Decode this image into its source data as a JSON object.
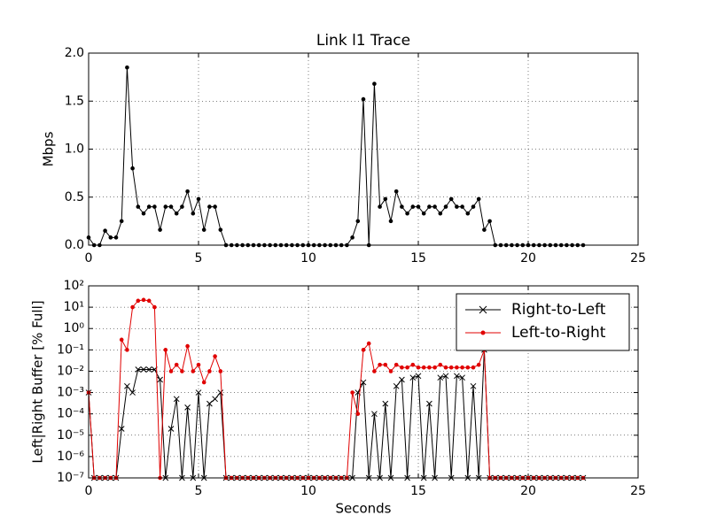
{
  "chart_data": [
    {
      "type": "line",
      "title": "Link l1 Trace",
      "y_label": "Mbps",
      "x": [
        0,
        0.25,
        0.5,
        0.75,
        1,
        1.25,
        1.5,
        1.75,
        2,
        2.25,
        2.5,
        2.75,
        3,
        3.25,
        3.5,
        3.75,
        4,
        4.25,
        4.5,
        4.75,
        5,
        5.25,
        5.5,
        5.75,
        6,
        6.25,
        6.5,
        6.75,
        7,
        7.25,
        7.5,
        7.75,
        8,
        8.25,
        8.5,
        8.75,
        9,
        9.25,
        9.5,
        9.75,
        10,
        10.25,
        10.5,
        10.75,
        11,
        11.25,
        11.5,
        11.75,
        12,
        12.25,
        12.5,
        12.75,
        13,
        13.25,
        13.5,
        13.75,
        14,
        14.25,
        14.5,
        14.75,
        15,
        15.25,
        15.5,
        15.75,
        16,
        16.25,
        16.5,
        16.75,
        17,
        17.25,
        17.5,
        17.75,
        18,
        18.25,
        18.5,
        18.75,
        19,
        19.25,
        19.5,
        19.75,
        20,
        20.25,
        20.5,
        20.75,
        21,
        21.25,
        21.5,
        21.75,
        22,
        22.25,
        22.5
      ],
      "series": [
        {
          "color": "#000000",
          "marker": "circle",
          "values": [
            0.08,
            0,
            0,
            0.15,
            0.08,
            0.08,
            0.25,
            1.85,
            0.8,
            0.4,
            0.33,
            0.4,
            0.4,
            0.16,
            0.4,
            0.4,
            0.33,
            0.4,
            0.56,
            0.33,
            0.48,
            0.16,
            0.4,
            0.4,
            0.16,
            0,
            0,
            0,
            0,
            0,
            0,
            0,
            0,
            0,
            0,
            0,
            0,
            0,
            0,
            0,
            0,
            0,
            0,
            0,
            0,
            0,
            0,
            0,
            0.08,
            0.25,
            1.52,
            0,
            1.68,
            0.4,
            0.48,
            0.25,
            0.56,
            0.4,
            0.33,
            0.4,
            0.4,
            0.33,
            0.4,
            0.4,
            0.33,
            0.4,
            0.48,
            0.4,
            0.4,
            0.33,
            0.4,
            0.48,
            0.16,
            0.25,
            0,
            0,
            0,
            0,
            0,
            0,
            0,
            0,
            0,
            0,
            0,
            0,
            0,
            0,
            0,
            0,
            0
          ]
        }
      ],
      "xlim": [
        0,
        25
      ],
      "xticks": [
        0,
        5,
        10,
        15,
        20,
        25
      ],
      "ylim": [
        0,
        2
      ],
      "yticks": [
        {
          "value": 0,
          "label": "0.0"
        },
        {
          "value": 0.5,
          "label": "0.5"
        },
        {
          "value": 1,
          "label": "1.0"
        },
        {
          "value": 1.5,
          "label": "1.5"
        },
        {
          "value": 2,
          "label": "2.0"
        }
      ],
      "grid": true
    },
    {
      "type": "line",
      "x_label": "Seconds",
      "y_label": "Left|Right Buffer [% Full]",
      "log_y": true,
      "legend": "upper right",
      "x": [
        0,
        0.25,
        0.5,
        0.75,
        1,
        1.25,
        1.5,
        1.75,
        2,
        2.25,
        2.5,
        2.75,
        3,
        3.25,
        3.5,
        3.75,
        4,
        4.25,
        4.5,
        4.75,
        5,
        5.25,
        5.5,
        5.75,
        6,
        6.25,
        6.5,
        6.75,
        7,
        7.25,
        7.5,
        7.75,
        8,
        8.25,
        8.5,
        8.75,
        9,
        9.25,
        9.5,
        9.75,
        10,
        10.25,
        10.5,
        10.75,
        11,
        11.25,
        11.5,
        11.75,
        12,
        12.25,
        12.5,
        12.75,
        13,
        13.25,
        13.5,
        13.75,
        14,
        14.25,
        14.5,
        14.75,
        15,
        15.25,
        15.5,
        15.75,
        16,
        16.25,
        16.5,
        16.75,
        17,
        17.25,
        17.5,
        17.75,
        18,
        18.25,
        18.5,
        18.75,
        19,
        19.25,
        19.5,
        19.75,
        20,
        20.25,
        20.5,
        20.75,
        21,
        21.25,
        21.5,
        21.75,
        22,
        22.25,
        22.5
      ],
      "series": [
        {
          "name": "Right-to-Left",
          "color": "#000000",
          "marker": "x",
          "values": [
            0.001,
            1e-07,
            1e-07,
            1e-07,
            1e-07,
            1e-07,
            2e-05,
            0.002,
            0.001,
            0.012,
            0.012,
            0.012,
            0.012,
            0.004,
            1e-07,
            2e-05,
            0.0005,
            1e-07,
            0.0002,
            1e-07,
            0.001,
            1e-07,
            0.0003,
            0.0005,
            0.001,
            1e-07,
            1e-07,
            1e-07,
            1e-07,
            1e-07,
            1e-07,
            1e-07,
            1e-07,
            1e-07,
            1e-07,
            1e-07,
            1e-07,
            1e-07,
            1e-07,
            1e-07,
            1e-07,
            1e-07,
            1e-07,
            1e-07,
            1e-07,
            1e-07,
            1e-07,
            1e-07,
            1e-07,
            0.001,
            0.003,
            1e-07,
            0.0001,
            1e-07,
            0.0003,
            1e-07,
            0.002,
            0.004,
            1e-07,
            0.005,
            0.006,
            1e-07,
            0.0003,
            1e-07,
            0.005,
            0.006,
            1e-07,
            0.006,
            0.005,
            1e-07,
            0.002,
            1e-07,
            0.1,
            1e-07,
            1e-07,
            1e-07,
            1e-07,
            1e-07,
            1e-07,
            1e-07,
            1e-07,
            1e-07,
            1e-07,
            1e-07,
            1e-07,
            1e-07,
            1e-07,
            1e-07,
            1e-07,
            1e-07,
            1e-07
          ]
        },
        {
          "name": "Left-to-Right",
          "color": "#e00000",
          "marker": "circle",
          "values": [
            0.001,
            1e-07,
            1e-07,
            1e-07,
            1e-07,
            1e-07,
            0.3,
            0.1,
            10,
            20,
            22,
            20,
            10,
            1e-07,
            0.1,
            0.01,
            0.02,
            0.01,
            0.15,
            0.01,
            0.02,
            0.003,
            0.01,
            0.05,
            0.01,
            1e-07,
            1e-07,
            1e-07,
            1e-07,
            1e-07,
            1e-07,
            1e-07,
            1e-07,
            1e-07,
            1e-07,
            1e-07,
            1e-07,
            1e-07,
            1e-07,
            1e-07,
            1e-07,
            1e-07,
            1e-07,
            1e-07,
            1e-07,
            1e-07,
            1e-07,
            1e-07,
            0.001,
            0.0001,
            0.1,
            0.2,
            0.01,
            0.02,
            0.02,
            0.01,
            0.02,
            0.015,
            0.015,
            0.02,
            0.015,
            0.015,
            0.015,
            0.015,
            0.02,
            0.015,
            0.015,
            0.015,
            0.015,
            0.015,
            0.015,
            0.02,
            0.1,
            1e-07,
            1e-07,
            1e-07,
            1e-07,
            1e-07,
            1e-07,
            1e-07,
            1e-07,
            1e-07,
            1e-07,
            1e-07,
            1e-07,
            1e-07,
            1e-07,
            1e-07,
            1e-07,
            1e-07,
            1e-07
          ]
        }
      ],
      "xlim": [
        0,
        25
      ],
      "xticks": [
        0,
        5,
        10,
        15,
        20,
        25
      ],
      "ylim": [
        1e-07,
        100
      ],
      "yticks": [
        {
          "value": 1e-07,
          "label": "10⁻⁷"
        },
        {
          "value": 1e-06,
          "label": "10⁻⁶"
        },
        {
          "value": 1e-05,
          "label": "10⁻⁵"
        },
        {
          "value": 0.0001,
          "label": "10⁻⁴"
        },
        {
          "value": 0.001,
          "label": "10⁻³"
        },
        {
          "value": 0.01,
          "label": "10⁻²"
        },
        {
          "value": 0.1,
          "label": "10⁻¹"
        },
        {
          "value": 1,
          "label": "10⁰"
        },
        {
          "value": 10,
          "label": "10¹"
        },
        {
          "value": 100,
          "label": "10²"
        }
      ],
      "grid": true
    }
  ]
}
